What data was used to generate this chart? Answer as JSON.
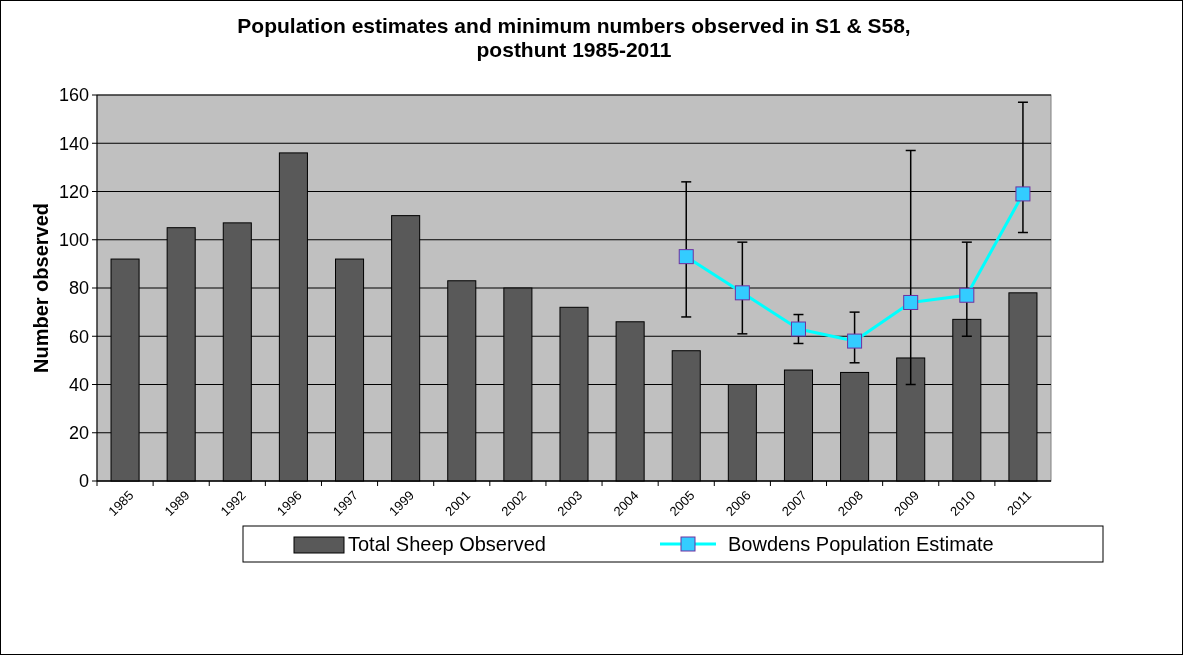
{
  "chart_data": {
    "type": "bar",
    "title": "Population estimates and minimum numbers observed in S1 & S58, posthunt 1985-2011",
    "ylabel": "Number observed",
    "categories": [
      "1985",
      "1989",
      "1992",
      "1996",
      "1997",
      "1999",
      "2001",
      "2002",
      "2003",
      "2004",
      "2005",
      "2006",
      "2007",
      "2008",
      "2009",
      "2010",
      "2011"
    ],
    "series": [
      {
        "name": "Total Sheep Observed",
        "color": "#595959",
        "values": [
          92,
          105,
          107,
          136,
          92,
          110,
          83,
          80,
          72,
          66,
          54,
          40,
          46,
          45,
          51,
          67,
          78
        ]
      },
      {
        "name": "Bowdens Population Estimate",
        "type": "line",
        "color": "#00ffff",
        "marker": "square",
        "values": [
          null,
          null,
          null,
          null,
          null,
          null,
          null,
          null,
          null,
          null,
          93,
          78,
          63,
          58,
          74,
          77,
          119
        ],
        "errors": [
          null,
          null,
          null,
          null,
          null,
          null,
          null,
          null,
          null,
          null,
          [
            68,
            124
          ],
          [
            61,
            99
          ],
          [
            57,
            69
          ],
          [
            49,
            70
          ],
          [
            40,
            137
          ],
          [
            60,
            99
          ],
          [
            103,
            157
          ]
        ]
      }
    ],
    "ylim": [
      0,
      160
    ],
    "yticks": [
      0,
      20,
      40,
      60,
      80,
      100,
      120,
      140,
      160
    ],
    "grid": "y",
    "legend": "bottom"
  }
}
